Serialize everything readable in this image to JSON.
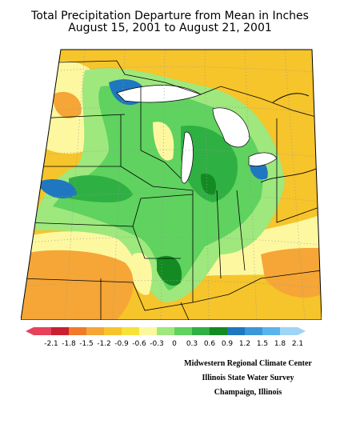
{
  "title": {
    "line1": "Total Precipitation Departure from Mean in Inches",
    "line2": "August 15, 2001  to  August 21, 2001"
  },
  "legend": {
    "labels": [
      "-2.1",
      "-1.8",
      "-1.5",
      "-1.2",
      "-0.9",
      "-0.6",
      "-0.3",
      "0",
      "0.3",
      "0.6",
      "0.9",
      "1.2",
      "1.5",
      "1.8",
      "2.1"
    ],
    "colors": [
      "#e6435b",
      "#c8202e",
      "#f07a2a",
      "#f5a636",
      "#f6c42b",
      "#f7e23a",
      "#fdf8a0",
      "#9ee87e",
      "#5fd25f",
      "#2fb043",
      "#138a22",
      "#1f77bf",
      "#3b98d8",
      "#5ab4ec",
      "#9fd4f5"
    ]
  },
  "map": {
    "region": "Midwest United States",
    "colors": {
      "border": "#000000",
      "grid": "#9a9a9a",
      "lake": "#ffffff",
      "background": "#ffffff"
    }
  },
  "credits": {
    "line1": "Midwestern Regional Climate Center",
    "line2": "Illinois State Water Survey",
    "line3": "Champaign, Illinois"
  }
}
